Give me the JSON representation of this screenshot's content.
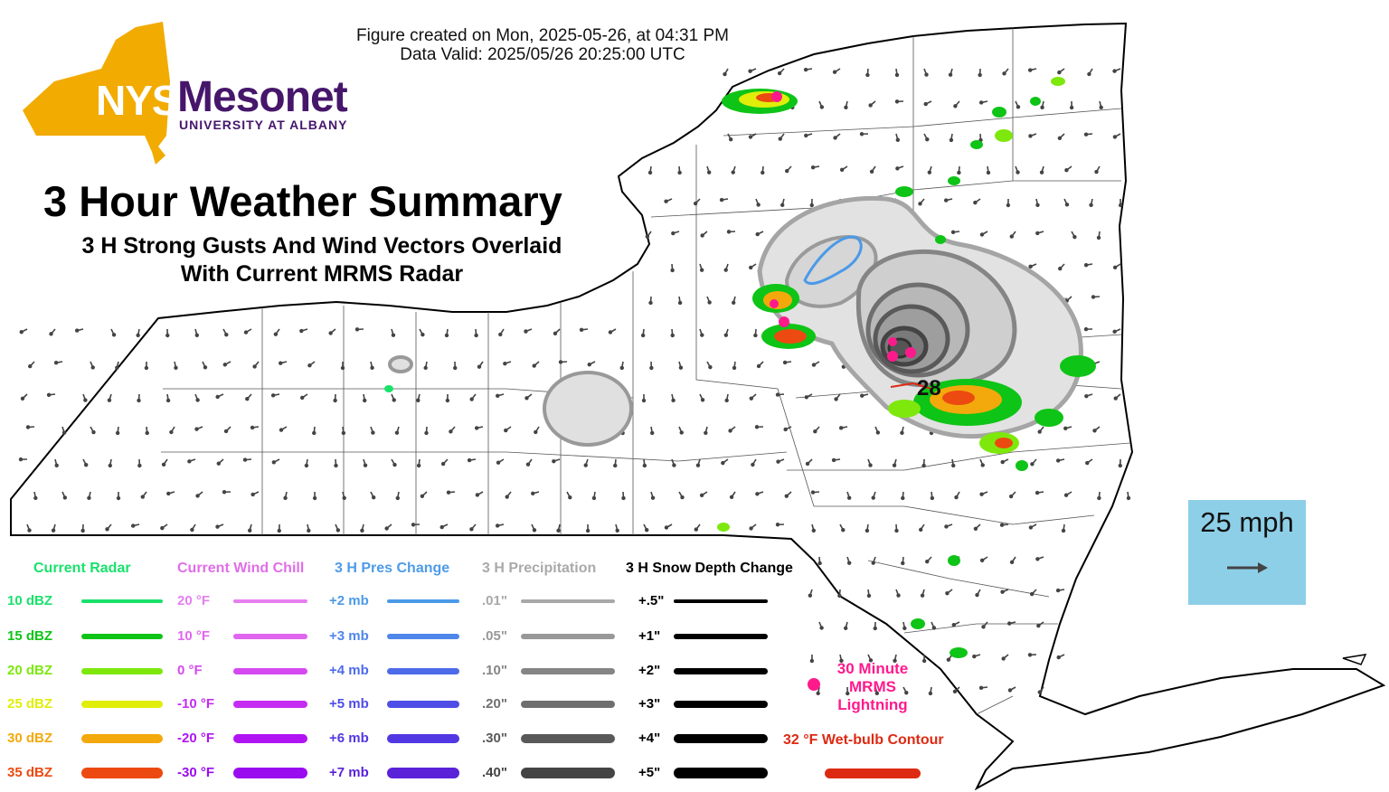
{
  "figure": {
    "created": "Figure created on Mon, 2025-05-26, at 04:31 PM",
    "valid": "Data Valid: 2025/05/26 20:25:00 UTC"
  },
  "logo": {
    "text_nys": "NYS",
    "text_mesonet": "Mesonet",
    "text_univ": "UNIVERSITY AT ALBANY",
    "colors": {
      "state": "#f2ab00",
      "nys": "#ffffff",
      "mesonet": "#46166b"
    }
  },
  "title": "3 Hour Weather Summary",
  "subtitle_line1": "3 H Strong Gusts And Wind Vectors Overlaid",
  "subtitle_line2": "With Current MRMS Radar",
  "gust_value": "28",
  "scale": {
    "label": "25 mph",
    "icon": "arrow-right-icon",
    "color": "#8ecfe8"
  },
  "legend": {
    "radar": {
      "title": "Current Radar",
      "title_color": "#19e26b",
      "items": [
        {
          "label": "10 dBZ",
          "color": "#19e26b"
        },
        {
          "label": "15 dBZ",
          "color": "#0ec416"
        },
        {
          "label": "20 dBZ",
          "color": "#7ee80d"
        },
        {
          "label": "25 dBZ",
          "color": "#e0ee0a"
        },
        {
          "label": "30 dBZ",
          "color": "#f3a90c"
        },
        {
          "label": "35 dBZ",
          "color": "#ec4a10"
        }
      ]
    },
    "wind_chill": {
      "title": "Current Wind Chill",
      "title_color": "#e06ee8",
      "items": [
        {
          "label": "20 °F",
          "color": "#e57ff0"
        },
        {
          "label": "10 °F",
          "color": "#e065f0"
        },
        {
          "label": "0 °F",
          "color": "#d44af0"
        },
        {
          "label": "-10 °F",
          "color": "#c52cf2"
        },
        {
          "label": "-20 °F",
          "color": "#b014f2"
        },
        {
          "label": "-30 °F",
          "color": "#9a0cf0"
        }
      ]
    },
    "pres_change": {
      "title": "3 H Pres Change",
      "title_color": "#4e9be8",
      "items": [
        {
          "label": "+2 mb",
          "color": "#4b9ae8"
        },
        {
          "label": "+3 mb",
          "color": "#4e86ea"
        },
        {
          "label": "+4 mb",
          "color": "#4d6be8"
        },
        {
          "label": "+5 mb",
          "color": "#4e4de6"
        },
        {
          "label": "+6 mb",
          "color": "#5238e2"
        },
        {
          "label": "+7 mb",
          "color": "#5a22d8"
        }
      ]
    },
    "precip": {
      "title": "3 H Precipitation",
      "title_color": "#aaaaaa",
      "items": [
        {
          "label": ".01\"",
          "color": "#a8a8a8"
        },
        {
          "label": ".05\"",
          "color": "#989898"
        },
        {
          "label": ".10\"",
          "color": "#858585"
        },
        {
          "label": ".20\"",
          "color": "#6f6f6f"
        },
        {
          "label": ".30\"",
          "color": "#595959"
        },
        {
          "label": ".40\"",
          "color": "#444444"
        }
      ]
    },
    "snow": {
      "title": "3 H Snow Depth Change",
      "title_color": "#000000",
      "items": [
        {
          "label": "+.5\"",
          "color": "#000000"
        },
        {
          "label": "+1\"",
          "color": "#000000"
        },
        {
          "label": "+2\"",
          "color": "#000000"
        },
        {
          "label": "+3\"",
          "color": "#000000"
        },
        {
          "label": "+4\"",
          "color": "#000000"
        },
        {
          "label": "+5\"",
          "color": "#000000"
        }
      ]
    },
    "lightning": {
      "label": "30 Minute MRMS Lightning",
      "color": "#ff1a8c"
    },
    "wetbulb": {
      "label": "32 °F Wet-bulb Contour",
      "color": "#dd2a12"
    }
  }
}
